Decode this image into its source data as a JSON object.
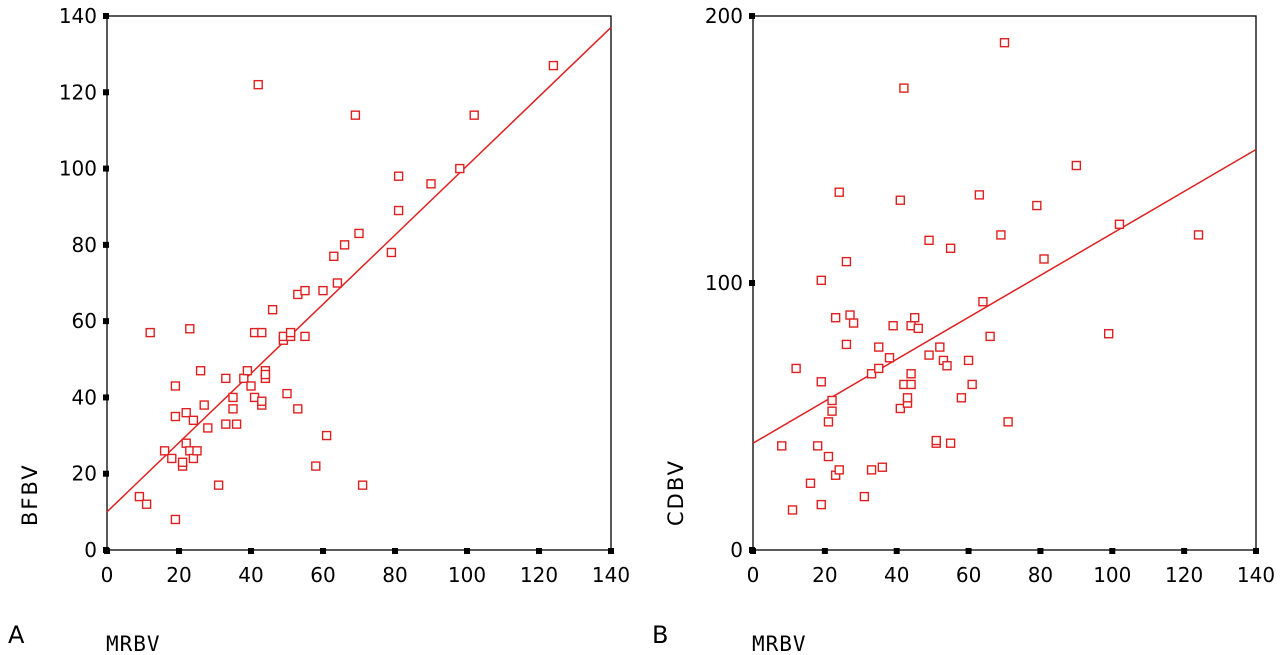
{
  "chart_data": [
    {
      "type": "scatter",
      "panel_label": "A",
      "xlabel": "MRBV",
      "ylabel": "BFBV",
      "xlim": [
        0,
        140
      ],
      "ylim": [
        0,
        140
      ],
      "xticks": [
        "0",
        "20",
        "40",
        "60",
        "80",
        "100",
        "120",
        "140"
      ],
      "yticks": [
        "0",
        "20",
        "40",
        "60",
        "80",
        "100",
        "120",
        "140"
      ],
      "grid": false,
      "marker_color": "#e02020",
      "line_color": "#e02020",
      "fit_line": {
        "x": [
          0,
          140
        ],
        "y": [
          10,
          137
        ]
      },
      "points": [
        [
          9,
          14
        ],
        [
          11,
          12
        ],
        [
          12,
          57
        ],
        [
          16,
          26
        ],
        [
          18,
          24
        ],
        [
          19,
          43
        ],
        [
          19,
          35
        ],
        [
          19,
          8
        ],
        [
          21,
          22
        ],
        [
          21,
          23
        ],
        [
          22,
          36
        ],
        [
          22,
          28
        ],
        [
          23,
          26
        ],
        [
          23,
          58
        ],
        [
          24,
          34
        ],
        [
          24,
          24
        ],
        [
          25,
          26
        ],
        [
          26,
          47
        ],
        [
          27,
          38
        ],
        [
          28,
          32
        ],
        [
          31,
          17
        ],
        [
          33,
          45
        ],
        [
          33,
          33
        ],
        [
          35,
          37
        ],
        [
          35,
          40
        ],
        [
          36,
          33
        ],
        [
          38,
          45
        ],
        [
          39,
          47
        ],
        [
          40,
          43
        ],
        [
          41,
          57
        ],
        [
          41,
          40
        ],
        [
          42,
          122
        ],
        [
          43,
          57
        ],
        [
          43,
          38
        ],
        [
          43,
          39
        ],
        [
          44,
          45
        ],
        [
          44,
          47
        ],
        [
          44,
          46
        ],
        [
          46,
          63
        ],
        [
          49,
          55
        ],
        [
          49,
          56
        ],
        [
          50,
          41
        ],
        [
          51,
          56
        ],
        [
          51,
          57
        ],
        [
          53,
          37
        ],
        [
          53,
          67
        ],
        [
          55,
          68
        ],
        [
          55,
          56
        ],
        [
          58,
          22
        ],
        [
          60,
          68
        ],
        [
          61,
          30
        ],
        [
          63,
          77
        ],
        [
          64,
          70
        ],
        [
          66,
          80
        ],
        [
          69,
          114
        ],
        [
          70,
          83
        ],
        [
          71,
          17
        ],
        [
          79,
          78
        ],
        [
          81,
          98
        ],
        [
          81,
          89
        ],
        [
          90,
          96
        ],
        [
          98,
          100
        ],
        [
          102,
          114
        ],
        [
          124,
          127
        ]
      ]
    },
    {
      "type": "scatter",
      "panel_label": "B",
      "xlabel": "MRBV",
      "ylabel": "CDBV",
      "xlim": [
        0,
        140
      ],
      "ylim": [
        0,
        200
      ],
      "xticks": [
        "0",
        "20",
        "40",
        "60",
        "80",
        "100",
        "120",
        "140"
      ],
      "yticks": [
        "0",
        "100",
        "200"
      ],
      "grid": false,
      "marker_color": "#e02020",
      "line_color": "#e02020",
      "fit_line": {
        "x": [
          0,
          140
        ],
        "y": [
          40,
          150
        ]
      },
      "points": [
        [
          8,
          39
        ],
        [
          11,
          15
        ],
        [
          12,
          68
        ],
        [
          16,
          25
        ],
        [
          18,
          39
        ],
        [
          19,
          17
        ],
        [
          19,
          63
        ],
        [
          19,
          101
        ],
        [
          21,
          35
        ],
        [
          21,
          48
        ],
        [
          22,
          56
        ],
        [
          22,
          52
        ],
        [
          23,
          28
        ],
        [
          23,
          87
        ],
        [
          24,
          30
        ],
        [
          24,
          134
        ],
        [
          26,
          77
        ],
        [
          26,
          108
        ],
        [
          27,
          88
        ],
        [
          28,
          85
        ],
        [
          31,
          20
        ],
        [
          33,
          30
        ],
        [
          33,
          66
        ],
        [
          35,
          68
        ],
        [
          35,
          76
        ],
        [
          36,
          31
        ],
        [
          38,
          72
        ],
        [
          39,
          84
        ],
        [
          41,
          53
        ],
        [
          41,
          131
        ],
        [
          42,
          62
        ],
        [
          42,
          173
        ],
        [
          43,
          55
        ],
        [
          43,
          57
        ],
        [
          44,
          62
        ],
        [
          44,
          84
        ],
        [
          44,
          66
        ],
        [
          45,
          87
        ],
        [
          46,
          83
        ],
        [
          49,
          116
        ],
        [
          49,
          73
        ],
        [
          51,
          40
        ],
        [
          51,
          41
        ],
        [
          52,
          76
        ],
        [
          53,
          71
        ],
        [
          54,
          69
        ],
        [
          55,
          113
        ],
        [
          55,
          40
        ],
        [
          58,
          57
        ],
        [
          60,
          71
        ],
        [
          61,
          62
        ],
        [
          63,
          133
        ],
        [
          64,
          93
        ],
        [
          66,
          80
        ],
        [
          69,
          118
        ],
        [
          70,
          190
        ],
        [
          71,
          48
        ],
        [
          79,
          129
        ],
        [
          81,
          109
        ],
        [
          90,
          144
        ],
        [
          99,
          81
        ],
        [
          102,
          122
        ],
        [
          124,
          118
        ]
      ]
    }
  ]
}
